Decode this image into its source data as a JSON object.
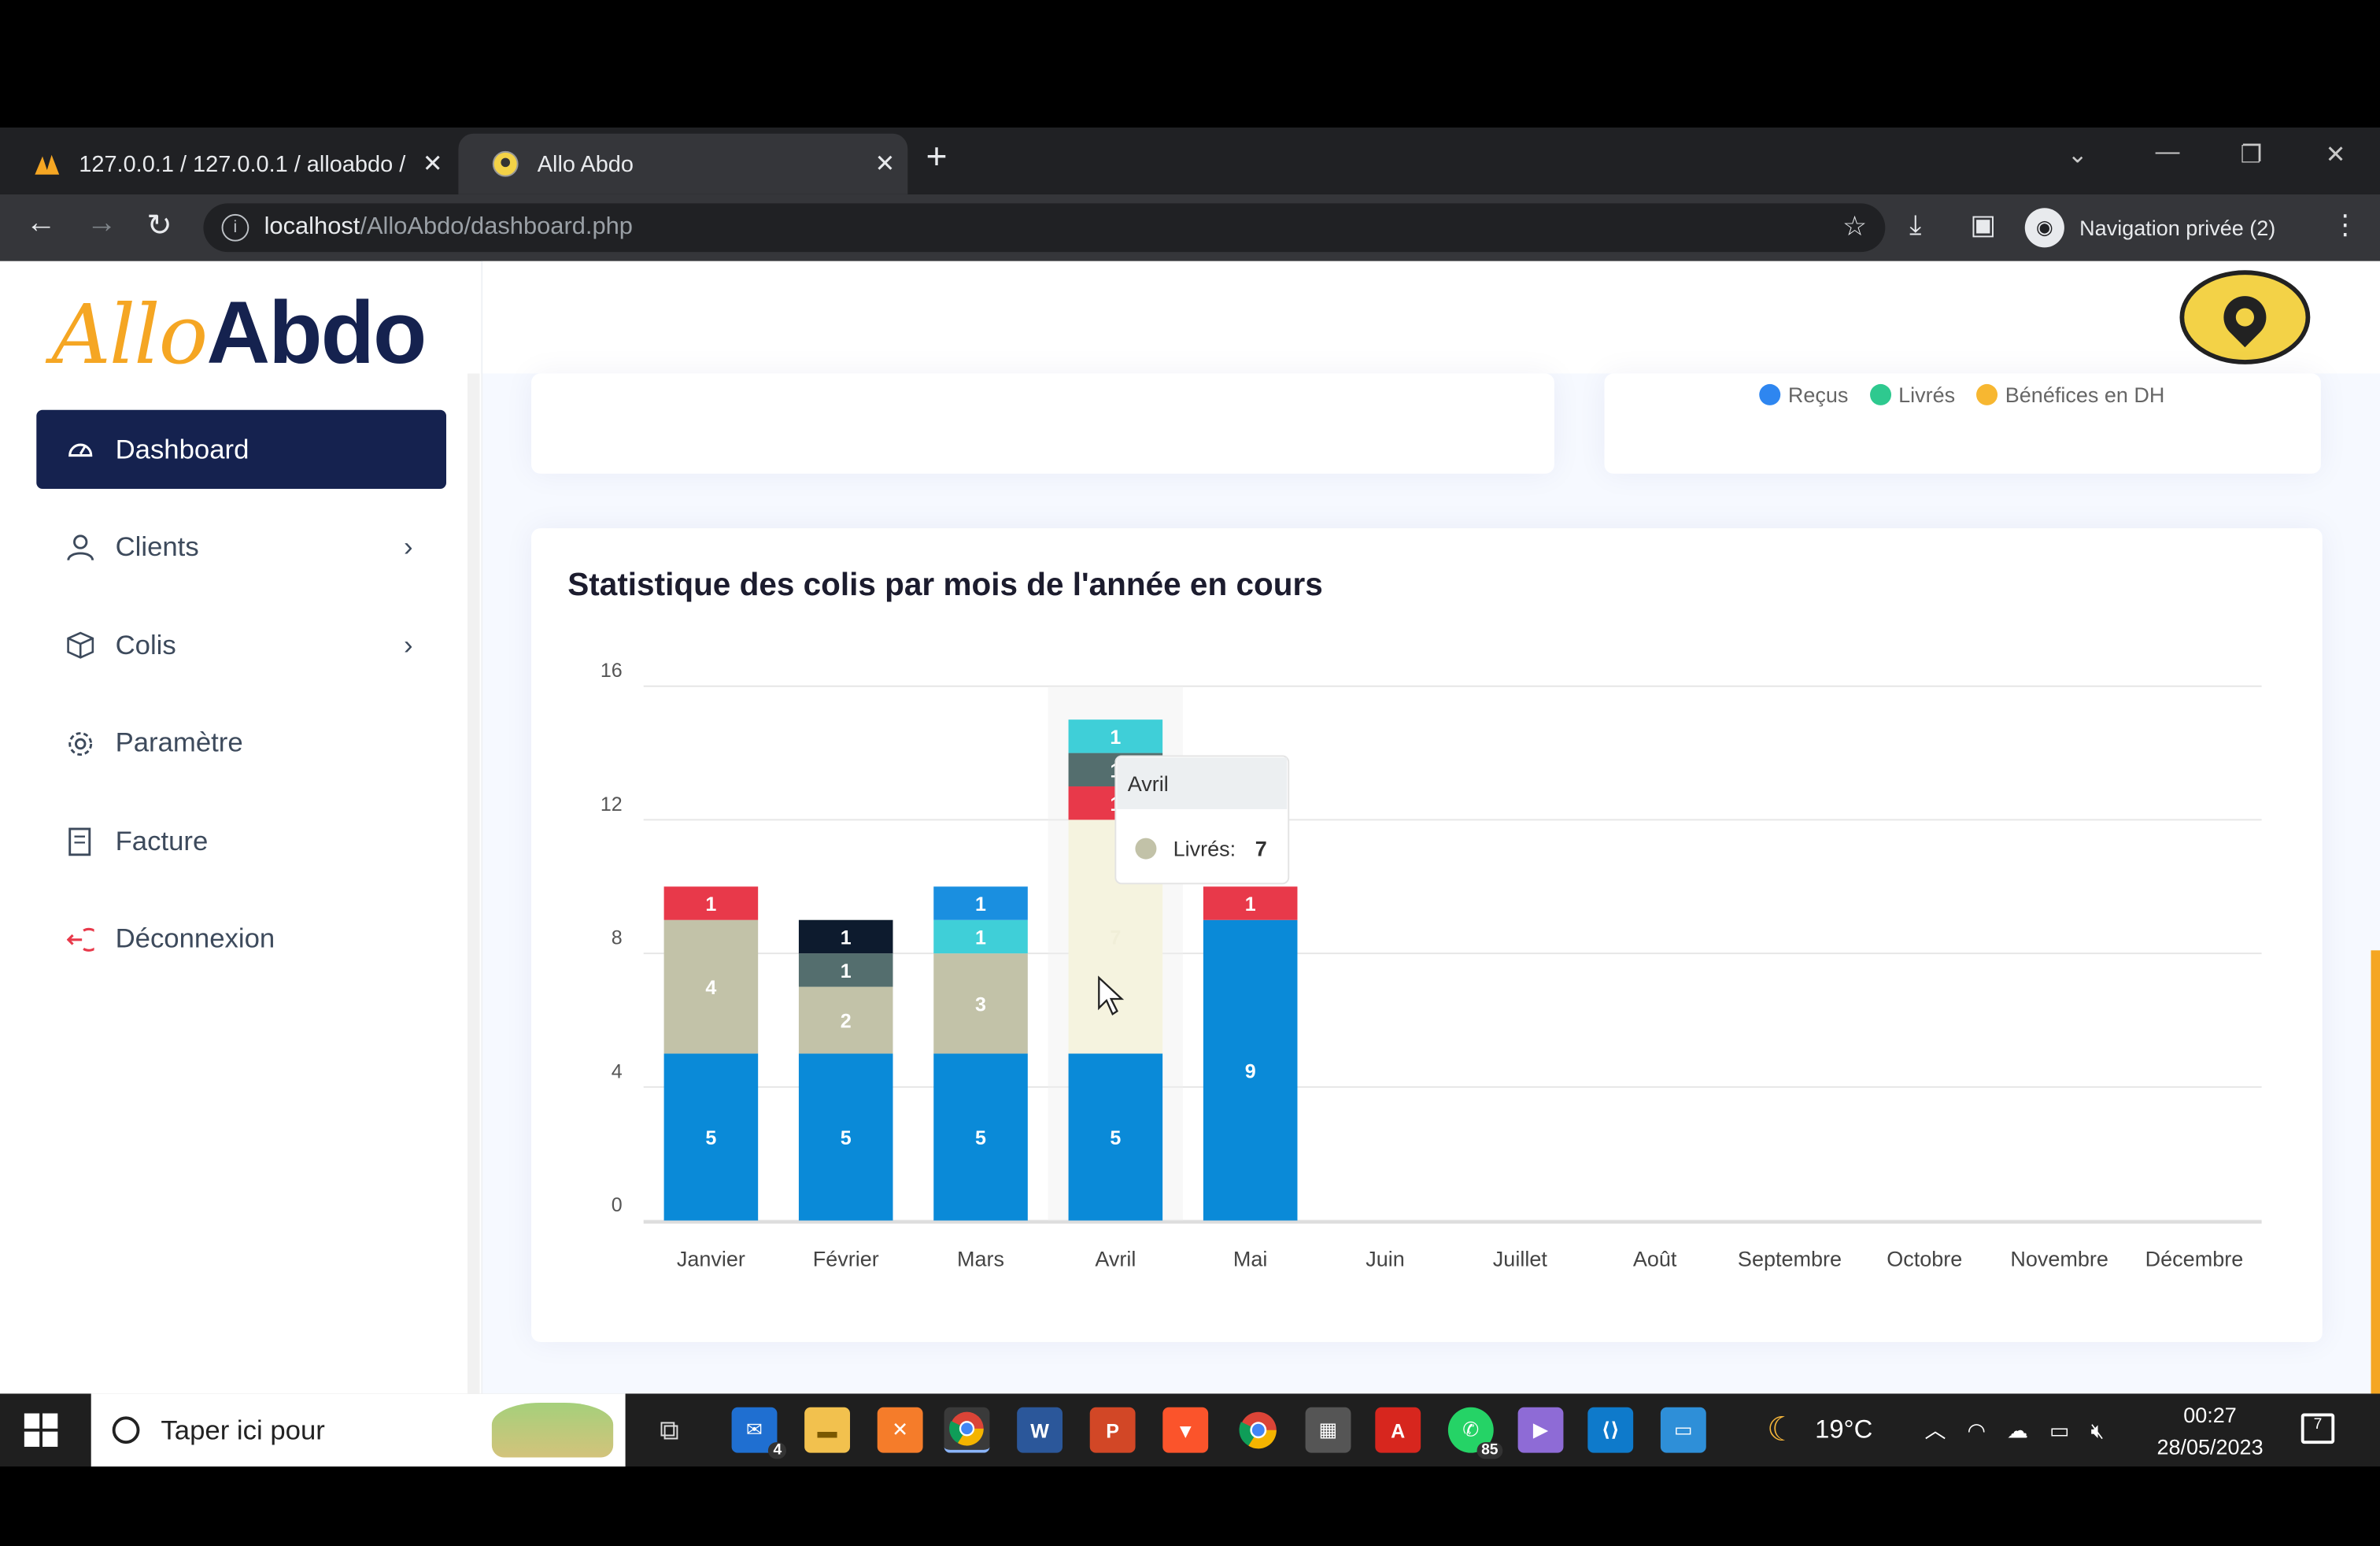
{
  "browser": {
    "tabs": [
      {
        "title": "127.0.0.1 / 127.0.0.1 / alloabdo / ",
        "active": false
      },
      {
        "title": "Allo Abdo",
        "active": true
      }
    ],
    "address_host": "localhost",
    "address_path": "/AlloAbdo/dashboard.php",
    "private_label": "Navigation privée (2)"
  },
  "app": {
    "logo_part1": "Allo",
    "logo_part2": "Abdo",
    "menu": [
      {
        "label": "Dashboard",
        "icon": "dashboard-icon",
        "active": true
      },
      {
        "label": "Clients",
        "icon": "person-icon",
        "chevron": true
      },
      {
        "label": "Colis",
        "icon": "box-icon",
        "chevron": true
      },
      {
        "label": "Paramètre",
        "icon": "gear-icon"
      },
      {
        "label": "Facture",
        "icon": "invoice-icon"
      },
      {
        "label": "Déconnexion",
        "icon": "logout-icon"
      }
    ],
    "legend": [
      {
        "label": "Reçus",
        "color": "#2e86f0"
      },
      {
        "label": "Livrés",
        "color": "#2ec98f"
      },
      {
        "label": "Bénéfices en DH",
        "color": "#f7b731"
      }
    ],
    "chart_title": "Statistique des colis par mois de l'année en cours"
  },
  "chart_data": {
    "type": "bar",
    "stacked": true,
    "categories": [
      "Janvier",
      "Février",
      "Mars",
      "Avril",
      "Mai",
      "Juin",
      "Juillet",
      "Août",
      "Septembre",
      "Octobre",
      "Novembre",
      "Décembre"
    ],
    "ylim": [
      0,
      16
    ],
    "yticks": [
      0,
      4,
      8,
      12,
      16
    ],
    "series": [
      {
        "color": "#0a8ad8",
        "values": [
          5,
          5,
          5,
          5,
          9,
          0,
          0,
          0,
          0,
          0,
          0,
          0
        ]
      },
      {
        "name": "Livrés",
        "color": "#c2c2a8",
        "values": [
          4,
          2,
          3,
          7,
          0,
          0,
          0,
          0,
          0,
          0,
          0,
          0
        ]
      },
      {
        "color": "#e8394a",
        "values": [
          1,
          0,
          0,
          1,
          1,
          0,
          0,
          0,
          0,
          0,
          0,
          0
        ]
      },
      {
        "color": "#546e6e",
        "values": [
          0,
          1,
          0,
          1,
          0,
          0,
          0,
          0,
          0,
          0,
          0,
          0
        ]
      },
      {
        "color": "#3fcfd8",
        "values": [
          0,
          0,
          1,
          1,
          0,
          0,
          0,
          0,
          0,
          0,
          0,
          0
        ]
      },
      {
        "color": "#0d1b2e",
        "values": [
          0,
          1,
          0,
          0,
          0,
          0,
          0,
          0,
          0,
          0,
          0,
          0
        ]
      },
      {
        "color": "#1a8fe0",
        "values": [
          0,
          0,
          1,
          0,
          0,
          0,
          0,
          0,
          0,
          0,
          0,
          0
        ]
      }
    ],
    "tooltip": {
      "title": "Avril",
      "label": "Livrés:",
      "value": "7",
      "color": "#c2c2a8"
    }
  },
  "taskbar": {
    "search_placeholder": "Taper ici pour",
    "weather": "19°C",
    "time": "00:27",
    "date": "28/05/2023",
    "mail_badge": "4",
    "whatsapp_badge": "85",
    "notif_count": "7"
  }
}
